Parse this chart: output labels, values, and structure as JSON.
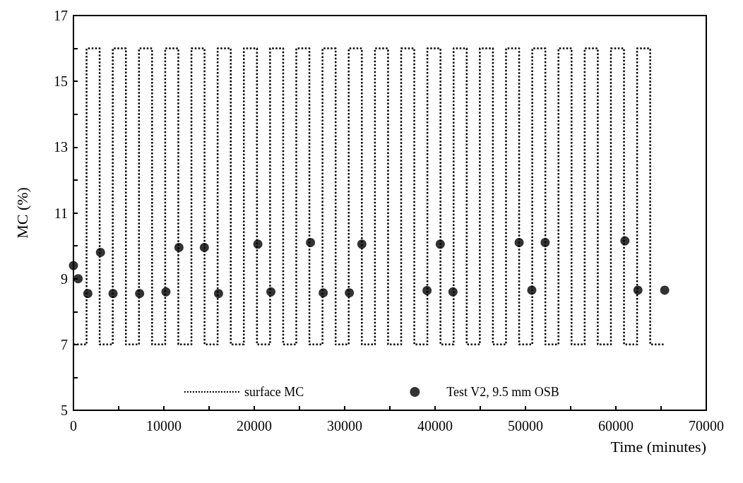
{
  "chart_data": {
    "type": "scatter",
    "xlabel": "Time (minutes)",
    "ylabel": "MC (%)",
    "xlim": [
      0,
      70000
    ],
    "ylim": [
      5,
      17
    ],
    "xticks": [
      0,
      {
        "value": 5000,
        "label": null
      },
      10000,
      {
        "value": 15000,
        "label": null
      },
      20000,
      {
        "value": 25000,
        "label": null
      },
      30000,
      {
        "value": 35000,
        "label": null
      },
      40000,
      {
        "value": 45000,
        "label": null
      },
      50000,
      {
        "value": 55000,
        "label": null
      },
      60000,
      {
        "value": 65000,
        "label": null
      },
      70000
    ],
    "yticks": [
      5,
      {
        "value": 6,
        "label": null
      },
      7,
      {
        "value": 8,
        "label": null
      },
      9,
      {
        "value": 10,
        "label": null
      },
      11,
      {
        "value": 12,
        "label": null
      },
      13,
      {
        "value": 14,
        "label": null
      },
      15,
      {
        "value": 16,
        "label": null
      },
      17
    ],
    "grid": false,
    "legend": "bottom",
    "series": [
      {
        "name": "surface MC",
        "type": "step",
        "color": "#000000",
        "line_style": "dotted",
        "marker": "none",
        "x": [
          0,
          1450,
          2900,
          4350,
          5800,
          7250,
          8700,
          10150,
          11600,
          13050,
          14500,
          15950,
          17400,
          18850,
          20300,
          21750,
          23200,
          24650,
          26100,
          27550,
          29000,
          30450,
          31900,
          33350,
          34800,
          36250,
          37700,
          39150,
          40600,
          42050,
          43500,
          44950,
          46400,
          47850,
          49300,
          50750,
          52200,
          53650,
          55100,
          56550,
          58000,
          59450,
          60900,
          62350,
          63800,
          65400
        ],
        "values": [
          7,
          16,
          7,
          16,
          7,
          16,
          7,
          16,
          7,
          16,
          7,
          16,
          7,
          16,
          7,
          16,
          7,
          16,
          7,
          16,
          7,
          16,
          7,
          16,
          7,
          16,
          7,
          16,
          7,
          16,
          7,
          16,
          7,
          16,
          7,
          16,
          7,
          16,
          7,
          16,
          7,
          16,
          7,
          16,
          7,
          7
        ]
      },
      {
        "name": "Test V2, 9.5 mm OSB",
        "color": "#000000",
        "marker": "circle",
        "x": [
          0,
          520,
          1590,
          2990,
          4380,
          7320,
          10230,
          11670,
          14480,
          16050,
          20400,
          21840,
          26220,
          27630,
          30520,
          31900,
          39110,
          40570,
          41980,
          49300,
          50700,
          52180,
          61000,
          62440,
          65400
        ],
        "values": [
          9.4,
          9.0,
          8.55,
          9.8,
          8.55,
          8.55,
          8.6,
          9.95,
          9.95,
          8.55,
          10.05,
          8.6,
          10.1,
          8.57,
          8.57,
          10.05,
          8.64,
          10.05,
          8.6,
          10.1,
          8.65,
          10.1,
          10.15,
          8.65,
          8.65
        ]
      }
    ]
  }
}
